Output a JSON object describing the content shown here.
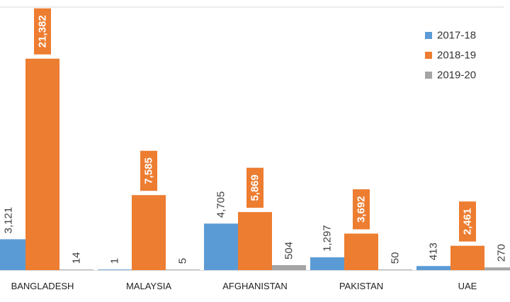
{
  "chart_data": {
    "type": "bar",
    "categories": [
      "BANGLADESH",
      "MALAYSIA",
      "AFGHANISTAN",
      "PAKISTAN",
      "UAE"
    ],
    "series": [
      {
        "name": "2017-18",
        "color": "#5b9bd5",
        "values": [
          3121,
          1,
          4705,
          1297,
          413
        ],
        "labels": [
          "3,121",
          "1",
          "4,705",
          "1,297",
          "413"
        ]
      },
      {
        "name": "2018-19",
        "color": "#ed7d31",
        "values": [
          21382,
          7585,
          5869,
          3692,
          2461
        ],
        "labels": [
          "21,382",
          "7,585",
          "5,869",
          "3,692",
          "2,461"
        ]
      },
      {
        "name": "2019-20",
        "color": "#a5a5a5",
        "values": [
          14,
          5,
          504,
          50,
          270
        ],
        "labels": [
          "14",
          "5",
          "504",
          "50",
          "270"
        ]
      }
    ],
    "ylim": [
      0,
      26600
    ],
    "legend": "top-right",
    "grid": false
  }
}
